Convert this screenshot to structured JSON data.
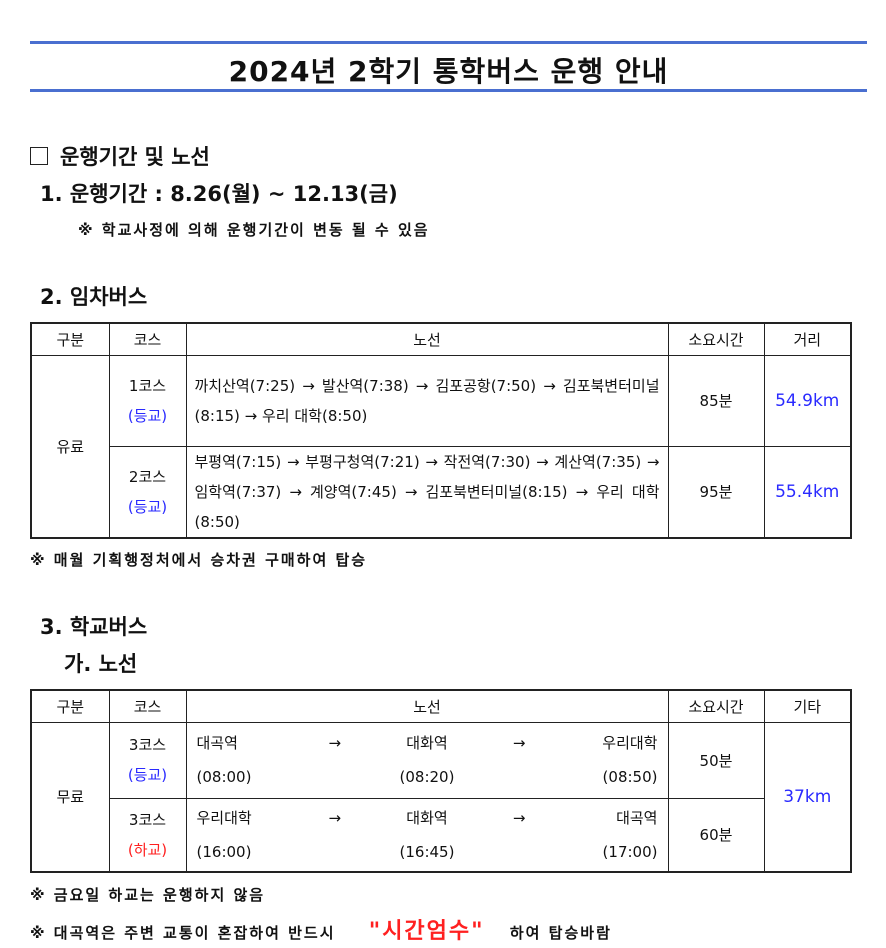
{
  "title": "2024년 2학기 통학버스 운행 안내",
  "section_main": {
    "checkbox_label": "운행기간 및 노선"
  },
  "period": {
    "heading": "1. 운행기간 : 8.26(월) ~ 12.13(금)",
    "note": "※ 학교사정에 의해 운행기간이 변동 될 수 있음"
  },
  "charter": {
    "heading": "2. 임차버스",
    "headers": [
      "구분",
      "코스",
      "노선",
      "소요시간",
      "거리"
    ],
    "category": "유료",
    "rows": [
      {
        "course": "1코스",
        "type": "(등교)",
        "route": "까치산역(7:25) → 발산역(7:38) → 김포공항(7:50) → 김포북변터미널(8:15) → 우리 대학(8:50)",
        "duration": "85분",
        "distance": "54.9km"
      },
      {
        "course": "2코스",
        "type": "(등교)",
        "route": "부평역(7:15) → 부평구청역(7:21) → 작전역(7:30) → 계산역(7:35) → 임학역(7:37) → 계양역(7:45) → 김포북변터미널(8:15) → 우리 대학(8:50)",
        "duration": "95분",
        "distance": "55.4km"
      }
    ],
    "note": "※ 매월 기획행정처에서 승차권 구매하여 탑승"
  },
  "school": {
    "heading": "3. 학교버스",
    "subheading": "가. 노선",
    "headers": [
      "구분",
      "코스",
      "노선",
      "소요시간",
      "기타"
    ],
    "category": "무료",
    "distance": "37km",
    "arrow": "→",
    "rows": [
      {
        "course": "3코스",
        "type": "(등교)",
        "stops": [
          "대곡역",
          "대화역",
          "우리대학"
        ],
        "times": [
          "(08:00)",
          "(08:20)",
          "(08:50)"
        ],
        "duration": "50분"
      },
      {
        "course": "3코스",
        "type": "(하교)",
        "stops": [
          "우리대학",
          "대화역",
          "대곡역"
        ],
        "times": [
          "(16:00)",
          "(16:45)",
          "(17:00)"
        ],
        "duration": "60분"
      }
    ],
    "note1": "※ 금요일 하교는 운행하지 않음",
    "note2_pre": "※ 대곡역은 주변 교통이 혼잡하여 반드시",
    "note2_emph": "\"시간엄수\"",
    "note2_post": "하여 탑승바람"
  },
  "colors": {
    "blue_rule": "#4a6fd0",
    "blue_text": "#2a2aff",
    "red_text": "#ff2020"
  }
}
